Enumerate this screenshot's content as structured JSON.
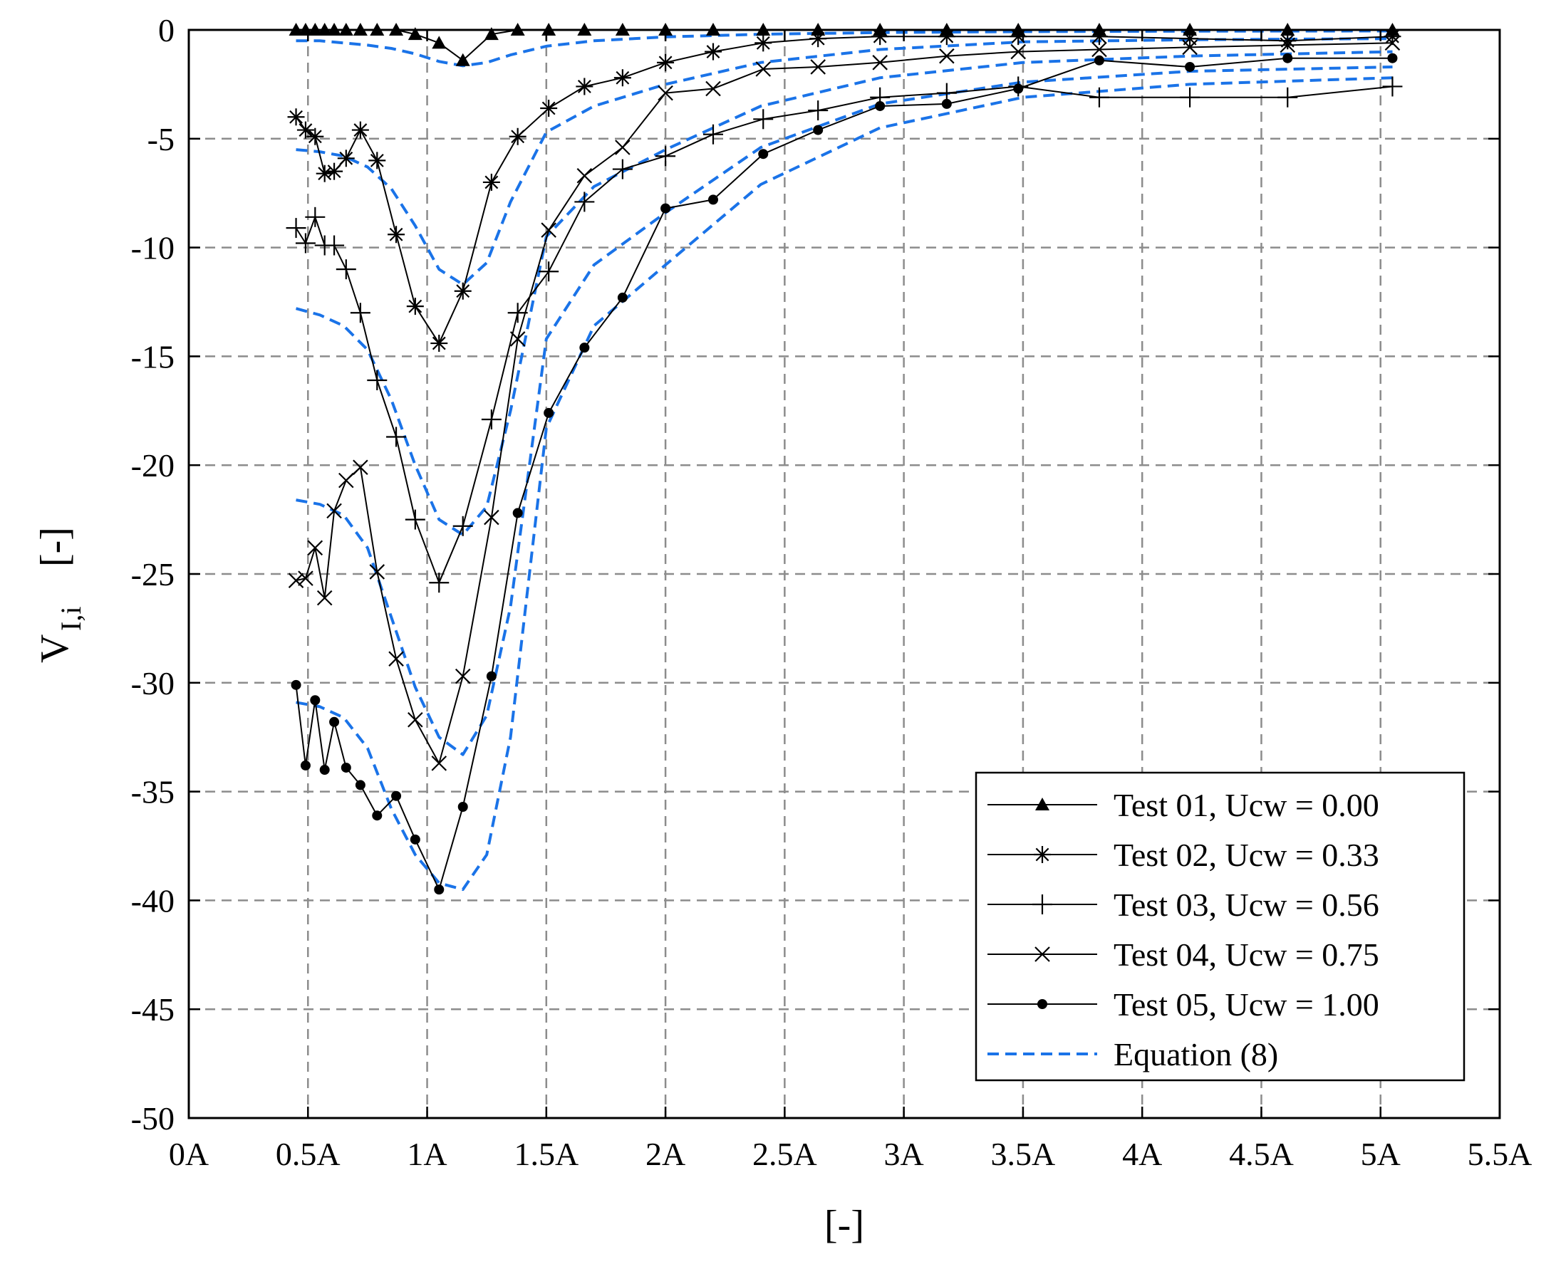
{
  "chart_data": {
    "type": "line",
    "title": "",
    "xlabel": "[-]",
    "ylabel": {
      "main": "V",
      "subscript": "I,i",
      "suffix": "[-]"
    },
    "xlim": [
      0,
      5.5
    ],
    "ylim": [
      -50,
      0
    ],
    "grid": true,
    "x_ticks": [
      0,
      0.5,
      1,
      1.5,
      2,
      2.5,
      3,
      3.5,
      4,
      4.5,
      5,
      5.5
    ],
    "x_tick_labels": [
      "0A",
      "0.5A",
      "1A",
      "1.5A",
      "2A",
      "2.5A",
      "3A",
      "3.5A",
      "4A",
      "4.5A",
      "5A",
      "5.5A"
    ],
    "y_ticks": [
      0,
      -5,
      -10,
      -15,
      -20,
      -25,
      -30,
      -35,
      -40,
      -45,
      -50
    ],
    "y_tick_labels": [
      "0",
      "-5",
      "-10",
      "-15",
      "-20",
      "-25",
      "-30",
      "-35",
      "-40",
      "-45",
      "-50"
    ],
    "legend_position": "bottom-right",
    "colors": {
      "measured": "#000000",
      "equation": "#1a73e8",
      "grid": "#8c8c8c"
    },
    "series": [
      {
        "name": "Test 01, Ucw = 0.00",
        "marker": "triangle",
        "x": [
          0.45,
          0.49,
          0.53,
          0.57,
          0.61,
          0.66,
          0.72,
          0.79,
          0.87,
          0.95,
          1.05,
          1.15,
          1.27,
          1.38,
          1.51,
          1.66,
          1.82,
          2.0,
          2.2,
          2.41,
          2.64,
          2.9,
          3.18,
          3.48,
          3.82,
          4.2,
          4.61,
          5.05
        ],
        "y": [
          0,
          0,
          0,
          0,
          0,
          0,
          0,
          0,
          0,
          -0.2,
          -0.6,
          -1.4,
          -0.2,
          0,
          0,
          0,
          0,
          0,
          0,
          0,
          0,
          0,
          0,
          0,
          0,
          0,
          0,
          0
        ]
      },
      {
        "name": "Test 02, Ucw = 0.33",
        "marker": "asterisk",
        "x": [
          0.45,
          0.49,
          0.53,
          0.57,
          0.61,
          0.66,
          0.72,
          0.79,
          0.87,
          0.95,
          1.05,
          1.15,
          1.27,
          1.38,
          1.51,
          1.66,
          1.82,
          2.0,
          2.2,
          2.41,
          2.64,
          2.9,
          3.18,
          3.48,
          3.82,
          4.2,
          4.61,
          5.05
        ],
        "y": [
          -4.0,
          -4.6,
          -4.9,
          -6.6,
          -6.5,
          -5.9,
          -4.6,
          -6.0,
          -9.4,
          -12.7,
          -14.4,
          -12.0,
          -7.0,
          -4.9,
          -3.6,
          -2.6,
          -2.2,
          -1.5,
          -1.0,
          -0.6,
          -0.4,
          -0.3,
          -0.3,
          -0.3,
          -0.3,
          -0.4,
          -0.5,
          -0.3
        ]
      },
      {
        "name": "Test 03, Ucw = 0.56",
        "marker": "plus",
        "x": [
          0.45,
          0.49,
          0.53,
          0.57,
          0.61,
          0.66,
          0.72,
          0.79,
          0.87,
          0.95,
          1.05,
          1.15,
          1.27,
          1.38,
          1.51,
          1.66,
          1.82,
          2.0,
          2.2,
          2.41,
          2.64,
          2.9,
          3.18,
          3.48,
          3.82,
          4.2,
          4.61,
          5.05
        ],
        "y": [
          -9.1,
          -9.8,
          -8.6,
          -9.9,
          -9.9,
          -11.0,
          -13.0,
          -16.1,
          -18.7,
          -22.5,
          -25.4,
          -22.8,
          -17.9,
          -13.0,
          -11.1,
          -7.9,
          -6.4,
          -5.8,
          -4.8,
          -4.1,
          -3.7,
          -3.1,
          -2.9,
          -2.6,
          -3.1,
          -3.1,
          -3.1,
          -2.6
        ]
      },
      {
        "name": "Test 04, Ucw = 0.75",
        "marker": "cross",
        "x": [
          0.45,
          0.49,
          0.53,
          0.57,
          0.61,
          0.66,
          0.72,
          0.79,
          0.87,
          0.95,
          1.05,
          1.15,
          1.27,
          1.38,
          1.51,
          1.66,
          1.82,
          2.0,
          2.2,
          2.41,
          2.64,
          2.9,
          3.18,
          3.48,
          3.82,
          4.2,
          4.61,
          5.05
        ],
        "y": [
          -25.3,
          -25.2,
          -23.8,
          -26.1,
          -22.1,
          -20.7,
          -20.1,
          -24.9,
          -28.9,
          -31.7,
          -33.7,
          -29.7,
          -22.4,
          -14.2,
          -9.2,
          -6.7,
          -5.4,
          -2.9,
          -2.7,
          -1.8,
          -1.7,
          -1.5,
          -1.2,
          -1.0,
          -0.9,
          -0.8,
          -0.7,
          -0.6
        ]
      },
      {
        "name": "Test 05, Ucw = 1.00",
        "marker": "dot",
        "x": [
          0.45,
          0.49,
          0.53,
          0.57,
          0.61,
          0.66,
          0.72,
          0.79,
          0.87,
          0.95,
          1.05,
          1.15,
          1.27,
          1.38,
          1.51,
          1.66,
          1.82,
          2.0,
          2.2,
          2.41,
          2.64,
          2.9,
          3.18,
          3.48,
          3.82,
          4.2,
          4.61,
          5.05
        ],
        "y": [
          -30.1,
          -33.8,
          -30.8,
          -34.0,
          -31.8,
          -33.9,
          -34.7,
          -36.1,
          -35.2,
          -37.2,
          -39.5,
          -35.7,
          -29.7,
          -22.2,
          -17.6,
          -14.6,
          -12.3,
          -8.2,
          -7.8,
          -5.7,
          -4.6,
          -3.5,
          -3.4,
          -2.7,
          -1.4,
          -1.7,
          -1.3,
          -1.3
        ]
      },
      {
        "name": "Equation (8)",
        "marker": "none",
        "style": "dashed",
        "curves": [
          {
            "x": [
              0.45,
              0.55,
              0.65,
              0.75,
              0.85,
              0.95,
              1.05,
              1.15,
              1.25,
              1.35,
              1.5,
              1.7,
              2.0,
              2.4,
              2.9,
              3.5,
              4.2,
              5.05
            ],
            "y": [
              -0.5,
              -0.5,
              -0.6,
              -0.7,
              -0.85,
              -1.1,
              -1.45,
              -1.65,
              -1.5,
              -1.15,
              -0.75,
              -0.5,
              -0.32,
              -0.2,
              -0.12,
              -0.08,
              -0.06,
              -0.05
            ]
          },
          {
            "x": [
              0.45,
              0.55,
              0.65,
              0.75,
              0.85,
              0.95,
              1.05,
              1.15,
              1.25,
              1.35,
              1.5,
              1.7,
              2.0,
              2.4,
              2.9,
              3.5,
              4.2,
              5.05
            ],
            "y": [
              -5.5,
              -5.6,
              -5.8,
              -6.3,
              -7.3,
              -9.0,
              -11.0,
              -11.7,
              -10.7,
              -7.9,
              -4.7,
              -3.5,
              -2.5,
              -1.5,
              -0.9,
              -0.55,
              -0.45,
              -0.4
            ]
          },
          {
            "x": [
              0.45,
              0.55,
              0.65,
              0.75,
              0.85,
              0.95,
              1.05,
              1.15,
              1.25,
              1.35,
              1.5,
              1.7,
              2.0,
              2.4,
              2.9,
              3.5,
              4.2,
              5.05
            ],
            "y": [
              -12.8,
              -13.1,
              -13.6,
              -14.7,
              -17.0,
              -20.0,
              -22.5,
              -23.2,
              -21.9,
              -17.5,
              -9.5,
              -7.2,
              -5.5,
              -3.5,
              -2.2,
              -1.5,
              -1.2,
              -1.0
            ]
          },
          {
            "x": [
              0.45,
              0.55,
              0.65,
              0.75,
              0.85,
              0.95,
              1.05,
              1.15,
              1.25,
              1.35,
              1.5,
              1.7,
              2.0,
              2.4,
              2.9,
              3.5,
              4.2,
              5.05
            ],
            "y": [
              -21.6,
              -21.8,
              -22.3,
              -23.8,
              -27.0,
              -30.2,
              -32.5,
              -33.3,
              -31.5,
              -26.5,
              -14.2,
              -10.8,
              -8.4,
              -5.4,
              -3.4,
              -2.4,
              -1.9,
              -1.7
            ]
          },
          {
            "x": [
              0.45,
              0.55,
              0.65,
              0.75,
              0.85,
              0.95,
              1.05,
              1.15,
              1.25,
              1.35,
              1.5,
              1.7,
              2.0,
              2.4,
              2.9,
              3.5,
              4.2,
              5.05
            ],
            "y": [
              -30.9,
              -31.1,
              -31.6,
              -33.0,
              -35.8,
              -37.9,
              -39.2,
              -39.5,
              -37.9,
              -32.5,
              -18.3,
              -13.6,
              -10.8,
              -7.1,
              -4.5,
              -3.1,
              -2.5,
              -2.2
            ]
          }
        ]
      }
    ]
  }
}
